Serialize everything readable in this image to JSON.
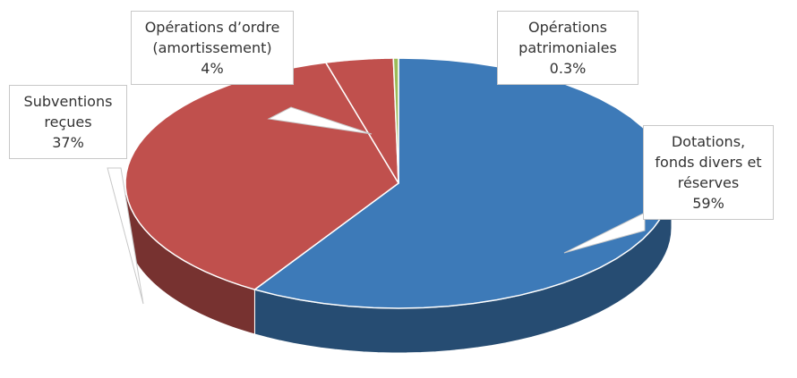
{
  "chart_data": {
    "type": "pie3d",
    "categories": [
      "Dotations, fonds divers et réserves",
      "Subventions reçues",
      "Opérations d’ordre (amortissement)",
      "Opérations patrimoniales"
    ],
    "values": [
      59,
      37,
      4,
      0.3
    ],
    "value_labels": [
      "59%",
      "37%",
      "4%",
      "0.3%"
    ],
    "colors": [
      "#3d7ab8",
      "#c0504d",
      "#c0504d",
      "#9bbb59"
    ]
  }
}
